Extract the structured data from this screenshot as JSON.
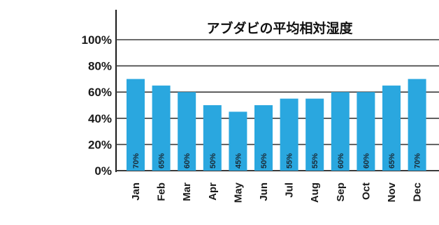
{
  "chart_data": {
    "type": "bar",
    "title": "アブダビの平均相対湿度",
    "categories": [
      "Jan",
      "Feb",
      "Mar",
      "Apr",
      "May",
      "Jun",
      "Jul",
      "Aug",
      "Sep",
      "Oct",
      "Nov",
      "Dec"
    ],
    "values": [
      70,
      65,
      60,
      50,
      45,
      50,
      55,
      55,
      60,
      60,
      65,
      70
    ],
    "value_labels": [
      "70%",
      "65%",
      "60%",
      "50%",
      "45%",
      "50%",
      "55%",
      "55%",
      "60%",
      "60%",
      "65%",
      "70%"
    ],
    "ylim": [
      0,
      100
    ],
    "yticks": [
      "0%",
      "20%",
      "40%",
      "60%",
      "80%",
      "100%"
    ],
    "xlabel": "",
    "ylabel": "",
    "grid": true,
    "bar_color": "#2aa7df",
    "grid_color": "#3a3a3a"
  }
}
